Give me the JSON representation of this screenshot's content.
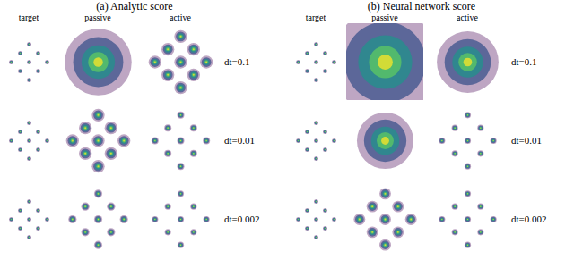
{
  "chart_data": {
    "type": "scatter",
    "tick_labels": false,
    "xlim": [
      -3,
      3
    ],
    "ylim": [
      -3,
      3
    ],
    "colors": [
      "#440154",
      "#3b528b",
      "#21918c",
      "#5ec962",
      "#fde725"
    ],
    "groups": [
      {
        "title": "(a) Analytic score",
        "columns": [
          "target",
          "passive",
          "active"
        ],
        "rows": [
          {
            "label": "dt=0.1",
            "panels": [
              [
                {
                  "x": 0,
                  "y": 2,
                  "spread": 0.25
                },
                {
                  "x": -1,
                  "y": 1,
                  "spread": 0.25
                },
                {
                  "x": 1,
                  "y": 1,
                  "spread": 0.25
                },
                {
                  "x": -2,
                  "y": 0,
                  "spread": 0.25
                },
                {
                  "x": 0,
                  "y": 0,
                  "spread": 0.25
                },
                {
                  "x": 2,
                  "y": 0,
                  "spread": 0.25
                },
                {
                  "x": -1,
                  "y": -1,
                  "spread": 0.25
                },
                {
                  "x": 1,
                  "y": -1,
                  "spread": 0.25
                },
                {
                  "x": 0,
                  "y": -2,
                  "spread": 0.25
                }
              ],
              [
                {
                  "x": 0,
                  "y": 0,
                  "spread": 2.6
                }
              ],
              [
                {
                  "x": 0,
                  "y": 2,
                  "spread": 0.5
                },
                {
                  "x": -1,
                  "y": 1,
                  "spread": 0.5
                },
                {
                  "x": 1,
                  "y": 1,
                  "spread": 0.5
                },
                {
                  "x": -2,
                  "y": 0,
                  "spread": 0.5
                },
                {
                  "x": 0,
                  "y": 0,
                  "spread": 0.5
                },
                {
                  "x": 2,
                  "y": 0,
                  "spread": 0.5
                },
                {
                  "x": -1,
                  "y": -1,
                  "spread": 0.5
                },
                {
                  "x": 1,
                  "y": -1,
                  "spread": 0.5
                },
                {
                  "x": 0,
                  "y": -2,
                  "spread": 0.5
                }
              ]
            ]
          },
          {
            "label": "dt=0.01",
            "panels": [
              [
                {
                  "x": 0,
                  "y": 2,
                  "spread": 0.25
                },
                {
                  "x": -1,
                  "y": 1,
                  "spread": 0.25
                },
                {
                  "x": 1,
                  "y": 1,
                  "spread": 0.25
                },
                {
                  "x": -2,
                  "y": 0,
                  "spread": 0.25
                },
                {
                  "x": 0,
                  "y": 0,
                  "spread": 0.25
                },
                {
                  "x": 2,
                  "y": 0,
                  "spread": 0.25
                },
                {
                  "x": -1,
                  "y": -1,
                  "spread": 0.25
                },
                {
                  "x": 1,
                  "y": -1,
                  "spread": 0.25
                },
                {
                  "x": 0,
                  "y": -2,
                  "spread": 0.25
                }
              ],
              [
                {
                  "x": 0,
                  "y": 2,
                  "spread": 0.5
                },
                {
                  "x": -1,
                  "y": 1,
                  "spread": 0.5
                },
                {
                  "x": 1,
                  "y": 1,
                  "spread": 0.5
                },
                {
                  "x": -2,
                  "y": 0,
                  "spread": 0.5
                },
                {
                  "x": 0,
                  "y": 0,
                  "spread": 0.5
                },
                {
                  "x": 2,
                  "y": 0,
                  "spread": 0.5
                },
                {
                  "x": -1,
                  "y": -1,
                  "spread": 0.5
                },
                {
                  "x": 1,
                  "y": -1,
                  "spread": 0.5
                },
                {
                  "x": 0,
                  "y": -2,
                  "spread": 0.5
                }
              ],
              [
                {
                  "x": 0,
                  "y": 2,
                  "spread": 0.28
                },
                {
                  "x": -1,
                  "y": 1,
                  "spread": 0.28
                },
                {
                  "x": 1,
                  "y": 1,
                  "spread": 0.28
                },
                {
                  "x": -2,
                  "y": 0,
                  "spread": 0.28
                },
                {
                  "x": 0,
                  "y": 0,
                  "spread": 0.28
                },
                {
                  "x": 2,
                  "y": 0,
                  "spread": 0.28
                },
                {
                  "x": -1,
                  "y": -1,
                  "spread": 0.28
                },
                {
                  "x": 1,
                  "y": -1,
                  "spread": 0.28
                },
                {
                  "x": 0,
                  "y": -2,
                  "spread": 0.28
                }
              ]
            ]
          },
          {
            "label": "dt=0.002",
            "panels": [
              [
                {
                  "x": 0,
                  "y": 2,
                  "spread": 0.25
                },
                {
                  "x": -1,
                  "y": 1,
                  "spread": 0.25
                },
                {
                  "x": 1,
                  "y": 1,
                  "spread": 0.25
                },
                {
                  "x": -2,
                  "y": 0,
                  "spread": 0.25
                },
                {
                  "x": 0,
                  "y": 0,
                  "spread": 0.25
                },
                {
                  "x": 2,
                  "y": 0,
                  "spread": 0.25
                },
                {
                  "x": -1,
                  "y": -1,
                  "spread": 0.25
                },
                {
                  "x": 1,
                  "y": -1,
                  "spread": 0.25
                },
                {
                  "x": 0,
                  "y": -2,
                  "spread": 0.25
                }
              ],
              [
                {
                  "x": 0,
                  "y": 2,
                  "spread": 0.32
                },
                {
                  "x": -1,
                  "y": 1,
                  "spread": 0.32
                },
                {
                  "x": 1,
                  "y": 1,
                  "spread": 0.32
                },
                {
                  "x": -2,
                  "y": 0,
                  "spread": 0.32
                },
                {
                  "x": 0,
                  "y": 0,
                  "spread": 0.32
                },
                {
                  "x": 2,
                  "y": 0,
                  "spread": 0.32
                },
                {
                  "x": -1,
                  "y": -1,
                  "spread": 0.32
                },
                {
                  "x": 1,
                  "y": -1,
                  "spread": 0.32
                },
                {
                  "x": 0,
                  "y": -2,
                  "spread": 0.32
                }
              ],
              [
                {
                  "x": 0,
                  "y": 2,
                  "spread": 0.25
                },
                {
                  "x": -1,
                  "y": 1,
                  "spread": 0.25
                },
                {
                  "x": 1,
                  "y": 1,
                  "spread": 0.25
                },
                {
                  "x": -2,
                  "y": 0,
                  "spread": 0.25
                },
                {
                  "x": 0,
                  "y": 0,
                  "spread": 0.25
                },
                {
                  "x": 2,
                  "y": 0,
                  "spread": 0.25
                },
                {
                  "x": -1,
                  "y": -1,
                  "spread": 0.25
                },
                {
                  "x": 1,
                  "y": -1,
                  "spread": 0.25
                },
                {
                  "x": 0,
                  "y": -2,
                  "spread": 0.25
                }
              ]
            ]
          }
        ]
      },
      {
        "title": "(b) Neural network score",
        "columns": [
          "target",
          "passive",
          "active"
        ],
        "rows": [
          {
            "label": "dt=0.1",
            "panels": [
              [
                {
                  "x": 0,
                  "y": 2,
                  "spread": 0.25
                },
                {
                  "x": -1,
                  "y": 1,
                  "spread": 0.25
                },
                {
                  "x": 1,
                  "y": 1,
                  "spread": 0.25
                },
                {
                  "x": -2,
                  "y": 0,
                  "spread": 0.25
                },
                {
                  "x": 0,
                  "y": 0,
                  "spread": 0.25
                },
                {
                  "x": 2,
                  "y": 0,
                  "spread": 0.25
                },
                {
                  "x": -1,
                  "y": -1,
                  "spread": 0.25
                },
                {
                  "x": 1,
                  "y": -1,
                  "spread": 0.25
                },
                {
                  "x": 0,
                  "y": -2,
                  "spread": 0.25
                }
              ],
              [
                {
                  "x": 0,
                  "y": 0,
                  "spread": 4.2
                }
              ],
              [
                {
                  "x": 0,
                  "y": 0,
                  "spread": 2.4
                }
              ]
            ]
          },
          {
            "label": "dt=0.01",
            "panels": [
              [
                {
                  "x": 0,
                  "y": 2,
                  "spread": 0.25
                },
                {
                  "x": -1,
                  "y": 1,
                  "spread": 0.25
                },
                {
                  "x": 1,
                  "y": 1,
                  "spread": 0.25
                },
                {
                  "x": -2,
                  "y": 0,
                  "spread": 0.25
                },
                {
                  "x": 0,
                  "y": 0,
                  "spread": 0.25
                },
                {
                  "x": 2,
                  "y": 0,
                  "spread": 0.25
                },
                {
                  "x": -1,
                  "y": -1,
                  "spread": 0.25
                },
                {
                  "x": 1,
                  "y": -1,
                  "spread": 0.25
                },
                {
                  "x": 0,
                  "y": -2,
                  "spread": 0.25
                }
              ],
              [
                {
                  "x": 0,
                  "y": 0,
                  "spread": 2.2
                }
              ],
              [
                {
                  "x": 0,
                  "y": 2,
                  "spread": 0.25
                },
                {
                  "x": -1,
                  "y": 1,
                  "spread": 0.25
                },
                {
                  "x": 1,
                  "y": 1,
                  "spread": 0.25
                },
                {
                  "x": -2,
                  "y": 0,
                  "spread": 0.25
                },
                {
                  "x": 0,
                  "y": 0,
                  "spread": 0.25
                },
                {
                  "x": 2,
                  "y": 0,
                  "spread": 0.25
                },
                {
                  "x": -1,
                  "y": -1,
                  "spread": 0.25
                },
                {
                  "x": 1,
                  "y": -1,
                  "spread": 0.25
                },
                {
                  "x": 0,
                  "y": -2,
                  "spread": 0.25
                }
              ]
            ]
          },
          {
            "label": "dt=0.002",
            "panels": [
              [
                {
                  "x": 0,
                  "y": 2,
                  "spread": 0.25
                },
                {
                  "x": -1,
                  "y": 1,
                  "spread": 0.25
                },
                {
                  "x": 1,
                  "y": 1,
                  "spread": 0.25
                },
                {
                  "x": -2,
                  "y": 0,
                  "spread": 0.25
                },
                {
                  "x": 0,
                  "y": 0,
                  "spread": 0.25
                },
                {
                  "x": 2,
                  "y": 0,
                  "spread": 0.25
                },
                {
                  "x": -1,
                  "y": -1,
                  "spread": 0.25
                },
                {
                  "x": 1,
                  "y": -1,
                  "spread": 0.25
                },
                {
                  "x": 0,
                  "y": -2,
                  "spread": 0.25
                }
              ],
              [
                {
                  "x": 0,
                  "y": 2,
                  "spread": 0.45
                },
                {
                  "x": -1,
                  "y": 1,
                  "spread": 0.45
                },
                {
                  "x": 1,
                  "y": 1,
                  "spread": 0.45
                },
                {
                  "x": -2,
                  "y": 0,
                  "spread": 0.45
                },
                {
                  "x": 0,
                  "y": 0,
                  "spread": 0.45
                },
                {
                  "x": 2,
                  "y": 0,
                  "spread": 0.45
                },
                {
                  "x": -1,
                  "y": -1,
                  "spread": 0.45
                },
                {
                  "x": 1,
                  "y": -1,
                  "spread": 0.45
                },
                {
                  "x": 0,
                  "y": -2,
                  "spread": 0.45
                }
              ],
              [
                {
                  "x": 0,
                  "y": 2,
                  "spread": 0.25
                },
                {
                  "x": -1,
                  "y": 1,
                  "spread": 0.25
                },
                {
                  "x": 1,
                  "y": 1,
                  "spread": 0.25
                },
                {
                  "x": -2,
                  "y": 0,
                  "spread": 0.25
                },
                {
                  "x": 0,
                  "y": 0,
                  "spread": 0.25
                },
                {
                  "x": 2,
                  "y": 0,
                  "spread": 0.25
                },
                {
                  "x": -1,
                  "y": -1,
                  "spread": 0.25
                },
                {
                  "x": 1,
                  "y": -1,
                  "spread": 0.25
                },
                {
                  "x": 0,
                  "y": -2,
                  "spread": 0.25
                }
              ]
            ]
          }
        ]
      }
    ]
  }
}
